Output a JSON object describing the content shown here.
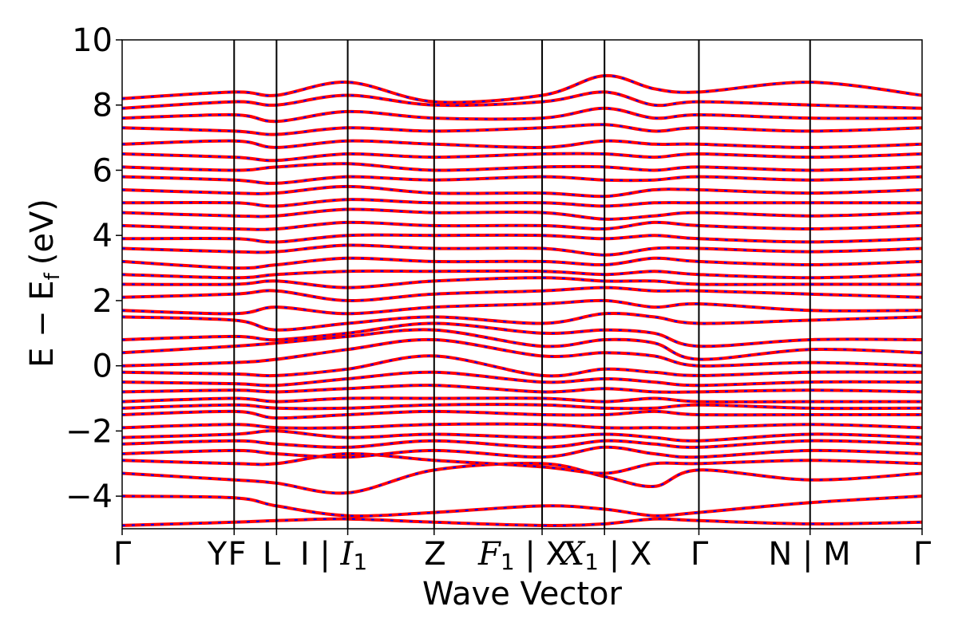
{
  "chart_data": {
    "type": "line",
    "title": "",
    "xlabel": "Wave Vector",
    "ylabel": "E − E",
    "ylabel_subscript": "f",
    "ylabel_unit": "(eV)",
    "ylim": [
      -5,
      10
    ],
    "yticks": [
      -4,
      -2,
      0,
      2,
      4,
      6,
      8,
      10
    ],
    "ytick_labels": [
      "−4",
      "−2",
      "0",
      "2",
      "4",
      "6",
      "8",
      "10"
    ],
    "xlim": [
      0,
      1
    ],
    "grid": false,
    "legend": "none",
    "kpoints": [
      {
        "x": 0.0,
        "label": "Γ"
      },
      {
        "x": 0.14,
        "label": "Y|F"
      },
      {
        "x": 0.193,
        "label": "F"
      },
      {
        "x": 0.193,
        "label": "L"
      },
      {
        "x": 0.282,
        "label": "I | I₁"
      },
      {
        "x": 0.39,
        "label": "Z"
      },
      {
        "x": 0.525,
        "label": "F₁ | X₁"
      },
      {
        "x": 0.603,
        "label": "| X"
      },
      {
        "x": 0.721,
        "label": "Γ"
      },
      {
        "x": 0.86,
        "label": "N | M"
      },
      {
        "x": 1.0,
        "label": "Γ"
      }
    ],
    "kpoint_lines": [
      0.14,
      0.193,
      0.282,
      0.39,
      0.525,
      0.603,
      0.721,
      0.86
    ],
    "xtick_labels_text": [
      "Γ",
      "Y",
      "F",
      "L",
      "I | ",
      "Z",
      " | X",
      " | X",
      "Γ",
      "N | M",
      "Γ"
    ],
    "series": [
      {
        "name": "",
        "color": "#ff0000",
        "style": "solid"
      },
      {
        "name": "",
        "color": "#0000ff",
        "style": "dashed"
      }
    ],
    "bands": [
      [
        -4.9,
        -4.8,
        -4.75,
        -4.7,
        -4.8,
        -4.9,
        -4.85,
        -4.7,
        -4.75,
        -4.85,
        -4.8
      ],
      [
        -4.0,
        -4.05,
        -4.3,
        -4.6,
        -4.5,
        -4.3,
        -4.4,
        -4.6,
        -4.5,
        -4.2,
        -4.0
      ],
      [
        -3.3,
        -3.5,
        -3.6,
        -3.9,
        -3.2,
        -3.0,
        -3.4,
        -3.7,
        -3.2,
        -3.5,
        -3.3
      ],
      [
        -2.9,
        -3.0,
        -3.0,
        -2.7,
        -2.9,
        -3.1,
        -3.3,
        -3.0,
        -3.0,
        -2.9,
        -3.0
      ],
      [
        -2.7,
        -2.6,
        -2.7,
        -2.8,
        -2.6,
        -2.8,
        -2.5,
        -2.7,
        -2.8,
        -2.6,
        -2.7
      ],
      [
        -2.4,
        -2.3,
        -2.4,
        -2.5,
        -2.3,
        -2.5,
        -2.3,
        -2.4,
        -2.5,
        -2.3,
        -2.4
      ],
      [
        -2.2,
        -2.1,
        -2.0,
        -2.2,
        -2.1,
        -2.2,
        -2.1,
        -2.2,
        -2.3,
        -2.1,
        -2.2
      ],
      [
        -1.9,
        -1.8,
        -1.9,
        -1.9,
        -1.8,
        -1.8,
        -1.9,
        -1.9,
        -1.9,
        -1.8,
        -1.9
      ],
      [
        -1.5,
        -1.4,
        -1.6,
        -1.5,
        -1.4,
        -1.5,
        -1.5,
        -1.4,
        -1.5,
        -1.5,
        -1.5
      ],
      [
        -1.3,
        -1.2,
        -1.3,
        -1.3,
        -1.2,
        -1.2,
        -1.3,
        -1.3,
        -1.2,
        -1.3,
        -1.3
      ],
      [
        -1.1,
        -1.0,
        -1.1,
        -1.0,
        -1.0,
        -1.0,
        -1.1,
        -1.0,
        -1.1,
        -1.1,
        -1.1
      ],
      [
        -0.8,
        -0.75,
        -0.8,
        -0.7,
        -0.6,
        -0.8,
        -0.7,
        -0.8,
        -0.8,
        -0.75,
        -0.8
      ],
      [
        -0.5,
        -0.55,
        -0.6,
        -0.4,
        -0.2,
        -0.5,
        -0.4,
        -0.5,
        -0.6,
        -0.5,
        -0.5
      ],
      [
        -0.2,
        -0.25,
        -0.3,
        -0.1,
        0.3,
        -0.3,
        -0.1,
        -0.2,
        -0.3,
        -0.2,
        -0.2
      ],
      [
        0.0,
        0.1,
        0.2,
        0.5,
        0.8,
        0.3,
        0.4,
        0.3,
        0.0,
        0.1,
        0.0
      ],
      [
        0.4,
        0.6,
        0.7,
        0.9,
        1.1,
        0.6,
        0.8,
        0.7,
        0.2,
        0.5,
        0.4
      ],
      [
        0.8,
        0.9,
        0.8,
        1.0,
        1.3,
        1.0,
        1.1,
        1.0,
        0.6,
        0.8,
        0.8
      ],
      [
        1.5,
        1.4,
        1.1,
        1.3,
        1.5,
        1.3,
        1.6,
        1.5,
        1.3,
        1.4,
        1.5
      ],
      [
        1.7,
        1.6,
        1.8,
        1.6,
        1.8,
        1.9,
        2.0,
        1.8,
        1.9,
        1.7,
        1.7
      ],
      [
        2.1,
        2.2,
        2.3,
        2.0,
        2.2,
        2.3,
        2.4,
        2.3,
        2.3,
        2.2,
        2.1
      ],
      [
        2.5,
        2.5,
        2.6,
        2.4,
        2.6,
        2.7,
        2.6,
        2.6,
        2.5,
        2.5,
        2.5
      ],
      [
        2.8,
        2.7,
        2.8,
        2.9,
        2.9,
        2.9,
        2.8,
        2.9,
        2.8,
        2.7,
        2.8
      ],
      [
        3.2,
        3.0,
        3.1,
        3.3,
        3.2,
        3.2,
        3.1,
        3.3,
        3.2,
        3.1,
        3.2
      ],
      [
        3.6,
        3.5,
        3.5,
        3.7,
        3.6,
        3.6,
        3.4,
        3.6,
        3.6,
        3.5,
        3.6
      ],
      [
        3.9,
        3.9,
        3.8,
        4.0,
        4.0,
        4.0,
        3.9,
        4.0,
        3.9,
        3.8,
        3.9
      ],
      [
        4.3,
        4.2,
        4.2,
        4.4,
        4.3,
        4.3,
        4.2,
        4.4,
        4.3,
        4.2,
        4.3
      ],
      [
        4.7,
        4.6,
        4.6,
        4.8,
        4.7,
        4.7,
        4.5,
        4.6,
        4.7,
        4.6,
        4.7
      ],
      [
        5.0,
        5.0,
        4.9,
        5.1,
        5.0,
        5.0,
        4.9,
        5.0,
        5.0,
        5.0,
        5.0
      ],
      [
        5.4,
        5.3,
        5.3,
        5.5,
        5.3,
        5.3,
        5.2,
        5.4,
        5.4,
        5.3,
        5.4
      ],
      [
        5.8,
        5.7,
        5.6,
        5.8,
        5.7,
        5.8,
        5.7,
        5.7,
        5.8,
        5.7,
        5.8
      ],
      [
        6.1,
        6.0,
        6.1,
        6.2,
        6.0,
        6.1,
        6.1,
        6.0,
        6.1,
        6.0,
        6.1
      ],
      [
        6.5,
        6.4,
        6.3,
        6.5,
        6.4,
        6.5,
        6.5,
        6.4,
        6.5,
        6.4,
        6.5
      ],
      [
        6.8,
        6.9,
        6.7,
        6.9,
        6.8,
        6.7,
        6.9,
        6.8,
        6.8,
        6.7,
        6.8
      ],
      [
        7.3,
        7.2,
        7.1,
        7.3,
        7.2,
        7.3,
        7.4,
        7.2,
        7.3,
        7.2,
        7.3
      ],
      [
        7.6,
        7.7,
        7.5,
        7.8,
        7.6,
        7.6,
        7.9,
        7.6,
        7.7,
        7.6,
        7.6
      ],
      [
        7.9,
        8.1,
        8.0,
        8.3,
        8.0,
        8.1,
        8.4,
        8.0,
        8.1,
        8.0,
        7.9
      ],
      [
        8.2,
        8.4,
        8.3,
        8.7,
        8.1,
        8.3,
        8.9,
        8.5,
        8.4,
        8.7,
        8.3
      ]
    ]
  }
}
